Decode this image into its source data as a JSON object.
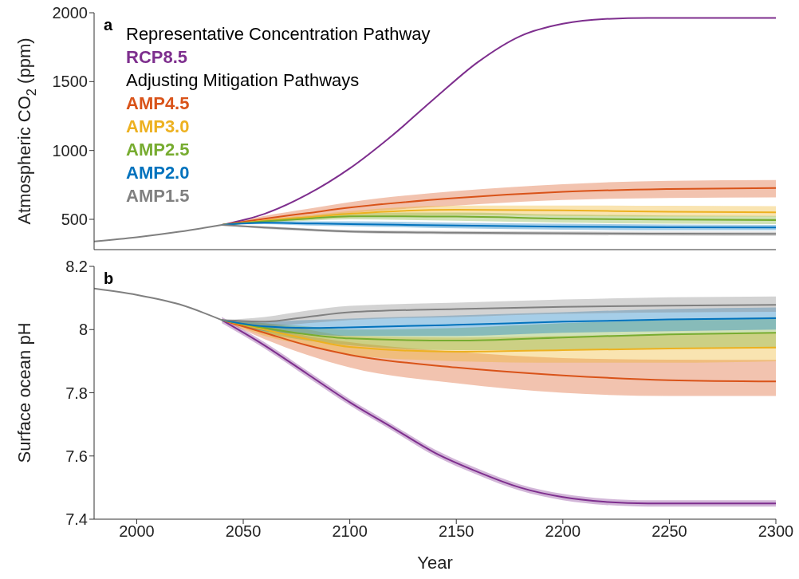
{
  "chart_data": [
    {
      "type": "line",
      "title": "a",
      "ylabel": "Atmospheric CO$_{2}$ (ppm)",
      "xlim": [
        1980,
        2300
      ],
      "ylim": [
        280,
        2000
      ],
      "yticks": [
        500,
        1000,
        1500,
        2000
      ],
      "tick_labels": "y",
      "legend": "top left",
      "annotations": [
        "Representative Concentration Pathway",
        "Adjusting Mitigation Pathways"
      ],
      "series": [
        {
          "color": "#808080",
          "x": [
            1980,
            2000,
            2020,
            2040
          ],
          "values": [
            340,
            370,
            410,
            460
          ]
        },
        {
          "name": "RCP8.5",
          "color": "#7e2f8e",
          "x": [
            2040,
            2060,
            2080,
            2100,
            2120,
            2140,
            2160,
            2180,
            2200,
            2220,
            2240,
            2300
          ],
          "values": [
            460,
            540,
            680,
            870,
            1110,
            1380,
            1640,
            1830,
            1920,
            1955,
            1962,
            1962
          ]
        },
        {
          "name": "AMP4.5",
          "color": "#d95319",
          "x": [
            2040,
            2060,
            2080,
            2100,
            2150,
            2200,
            2250,
            2300
          ],
          "values": [
            460,
            505,
            545,
            585,
            655,
            700,
            720,
            728
          ],
          "lower": [
            460,
            485,
            515,
            545,
            600,
            640,
            655,
            660
          ],
          "upper": [
            460,
            525,
            575,
            625,
            705,
            755,
            780,
            785
          ]
        },
        {
          "name": "AMP3.0",
          "color": "#edb120",
          "x": [
            2040,
            2060,
            2080,
            2100,
            2150,
            2200,
            2250,
            2300
          ],
          "values": [
            460,
            490,
            515,
            540,
            570,
            565,
            555,
            551
          ],
          "lower": [
            460,
            480,
            500,
            515,
            530,
            525,
            520,
            520
          ],
          "upper": [
            460,
            500,
            530,
            560,
            600,
            600,
            598,
            595
          ]
        },
        {
          "name": "AMP2.5",
          "color": "#77ac30",
          "x": [
            2040,
            2060,
            2080,
            2100,
            2150,
            2200,
            2250,
            2300
          ],
          "values": [
            460,
            485,
            505,
            522,
            520,
            505,
            498,
            495
          ],
          "lower": [
            460,
            475,
            490,
            500,
            490,
            475,
            468,
            465
          ],
          "upper": [
            460,
            495,
            520,
            545,
            550,
            535,
            528,
            525
          ]
        },
        {
          "name": "AMP2.0",
          "color": "#0072bd",
          "x": [
            2040,
            2060,
            2080,
            2100,
            2150,
            2200,
            2250,
            2300
          ],
          "values": [
            460,
            475,
            470,
            466,
            455,
            447,
            442,
            440
          ],
          "lower": [
            460,
            465,
            455,
            450,
            435,
            425,
            420,
            420
          ],
          "upper": [
            460,
            485,
            485,
            485,
            475,
            468,
            462,
            460
          ]
        },
        {
          "name": "AMP1.5",
          "color": "#808080",
          "x": [
            2040,
            2060,
            2080,
            2100,
            2150,
            2200,
            2250,
            2300
          ],
          "values": [
            460,
            440,
            425,
            412,
            403,
            398,
            396,
            395
          ],
          "lower": [
            460,
            430,
            415,
            402,
            390,
            385,
            382,
            380
          ],
          "upper": [
            460,
            450,
            435,
            422,
            415,
            412,
            410,
            410
          ]
        }
      ]
    },
    {
      "type": "line",
      "title": "b",
      "xlabel": "Year",
      "ylabel": "Surface ocean pH",
      "xlim": [
        1980,
        2300
      ],
      "xticks": [
        2000,
        2050,
        2100,
        2150,
        2200,
        2250,
        2300
      ],
      "ylim": [
        7.4,
        8.2
      ],
      "yticks": [
        7.4,
        7.6,
        7.8,
        8,
        8.2
      ],
      "series": [
        {
          "color": "#808080",
          "x": [
            1980,
            2000,
            2020,
            2040
          ],
          "values": [
            8.13,
            8.11,
            8.08,
            8.03
          ]
        },
        {
          "color": "#7e2f8e",
          "x": [
            2040,
            2060,
            2080,
            2100,
            2120,
            2140,
            2160,
            2180,
            2200,
            2220,
            2240,
            2300
          ],
          "values": [
            8.03,
            7.95,
            7.86,
            7.77,
            7.69,
            7.61,
            7.55,
            7.5,
            7.47,
            7.455,
            7.45,
            7.45
          ],
          "lower": [
            8.02,
            7.94,
            7.85,
            7.76,
            7.68,
            7.6,
            7.54,
            7.49,
            7.46,
            7.445,
            7.44,
            7.44
          ],
          "upper": [
            8.04,
            7.96,
            7.87,
            7.78,
            7.7,
            7.62,
            7.56,
            7.51,
            7.48,
            7.465,
            7.46,
            7.46
          ]
        },
        {
          "color": "#d95319",
          "x": [
            2040,
            2060,
            2080,
            2100,
            2150,
            2200,
            2250,
            2300
          ],
          "values": [
            8.03,
            7.99,
            7.95,
            7.92,
            7.88,
            7.855,
            7.84,
            7.836
          ],
          "lower": [
            8.03,
            7.97,
            7.92,
            7.88,
            7.83,
            7.8,
            7.79,
            7.79
          ],
          "upper": [
            8.03,
            8.01,
            7.98,
            7.96,
            7.93,
            7.91,
            7.905,
            7.904
          ]
        },
        {
          "color": "#edb120",
          "x": [
            2040,
            2060,
            2080,
            2100,
            2150,
            2200,
            2250,
            2300
          ],
          "values": [
            8.03,
            8,
            7.97,
            7.945,
            7.93,
            7.935,
            7.94,
            7.943
          ],
          "lower": [
            8.03,
            7.98,
            7.95,
            7.92,
            7.9,
            7.895,
            7.895,
            7.9
          ],
          "upper": [
            8.03,
            8.02,
            8,
            7.98,
            7.975,
            7.98,
            7.985,
            7.99
          ]
        },
        {
          "color": "#77ac30",
          "x": [
            2040,
            2060,
            2080,
            2100,
            2150,
            2200,
            2250,
            2300
          ],
          "values": [
            8.03,
            8.005,
            7.985,
            7.972,
            7.965,
            7.975,
            7.985,
            7.99
          ],
          "lower": [
            8.03,
            7.99,
            7.965,
            7.95,
            7.935,
            7.935,
            7.94,
            7.94
          ],
          "upper": [
            8.03,
            8.02,
            8.01,
            8,
            8.005,
            8.02,
            8.03,
            8.04
          ]
        },
        {
          "color": "#0072bd",
          "x": [
            2040,
            2060,
            2080,
            2100,
            2150,
            2200,
            2250,
            2300
          ],
          "values": [
            8.03,
            8.01,
            8.005,
            8.007,
            8.015,
            8.025,
            8.032,
            8.036
          ],
          "lower": [
            8.03,
            7.995,
            7.985,
            7.98,
            7.98,
            7.99,
            7.995,
            8
          ],
          "upper": [
            8.03,
            8.025,
            8.03,
            8.035,
            8.045,
            8.055,
            8.065,
            8.07
          ]
        },
        {
          "color": "#808080",
          "x": [
            2040,
            2060,
            2080,
            2100,
            2150,
            2200,
            2250,
            2300
          ],
          "values": [
            8.03,
            8.025,
            8.04,
            8.055,
            8.065,
            8.072,
            8.076,
            8.078
          ],
          "lower": [
            8.03,
            8.01,
            8.02,
            8.03,
            8.04,
            8.05,
            8.054,
            8.056
          ],
          "upper": [
            8.03,
            8.04,
            8.06,
            8.075,
            8.085,
            8.095,
            8.102,
            8.105
          ]
        }
      ]
    }
  ]
}
